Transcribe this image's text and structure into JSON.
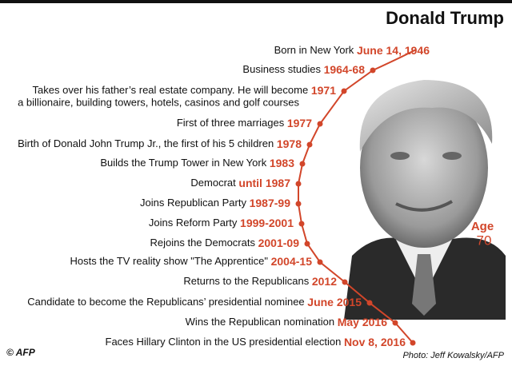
{
  "title": "Donald Trump",
  "events": [
    {
      "text": "Born in New York",
      "date": "June 14, 1946"
    },
    {
      "text": "Business studies",
      "date": "1964-68"
    },
    {
      "text": "Takes over his father’s real estate company. He will become",
      "text_continued": "a billionaire, building towers, hotels, casinos and golf courses",
      "date": "1971"
    },
    {
      "text": "First of three marriages",
      "date": "1977"
    },
    {
      "text": "Birth of Donald John Trump Jr., the first of his 5 children",
      "date": "1978"
    },
    {
      "text": "Builds the Trump Tower in New York",
      "date": "1983"
    },
    {
      "text": "Democrat",
      "date": "until 1987"
    },
    {
      "text": "Joins Republican Party",
      "date": "1987-99"
    },
    {
      "text": "Joins Reform Party",
      "date": "1999-2001"
    },
    {
      "text": "Rejoins the Democrats",
      "date": "2001-09"
    },
    {
      "text": "Hosts the TV reality show \"The Apprentice\"",
      "date": "2004-15"
    },
    {
      "text": "Returns to the Republicans",
      "date": "2012"
    },
    {
      "text": "Candidate to become the Republicans’ presidential nominee",
      "date": "June 2015"
    },
    {
      "text": "Wins the Republican nomination",
      "date": "May 2016"
    },
    {
      "text": "Faces Hillary Clinton in the US presidential election",
      "date": "Nov 8, 2016"
    }
  ],
  "age": {
    "label": "Age",
    "value": "70"
  },
  "footer": {
    "logo": "© AFP",
    "credit": "Photo: Jeff Kowalsky/AFP"
  }
}
